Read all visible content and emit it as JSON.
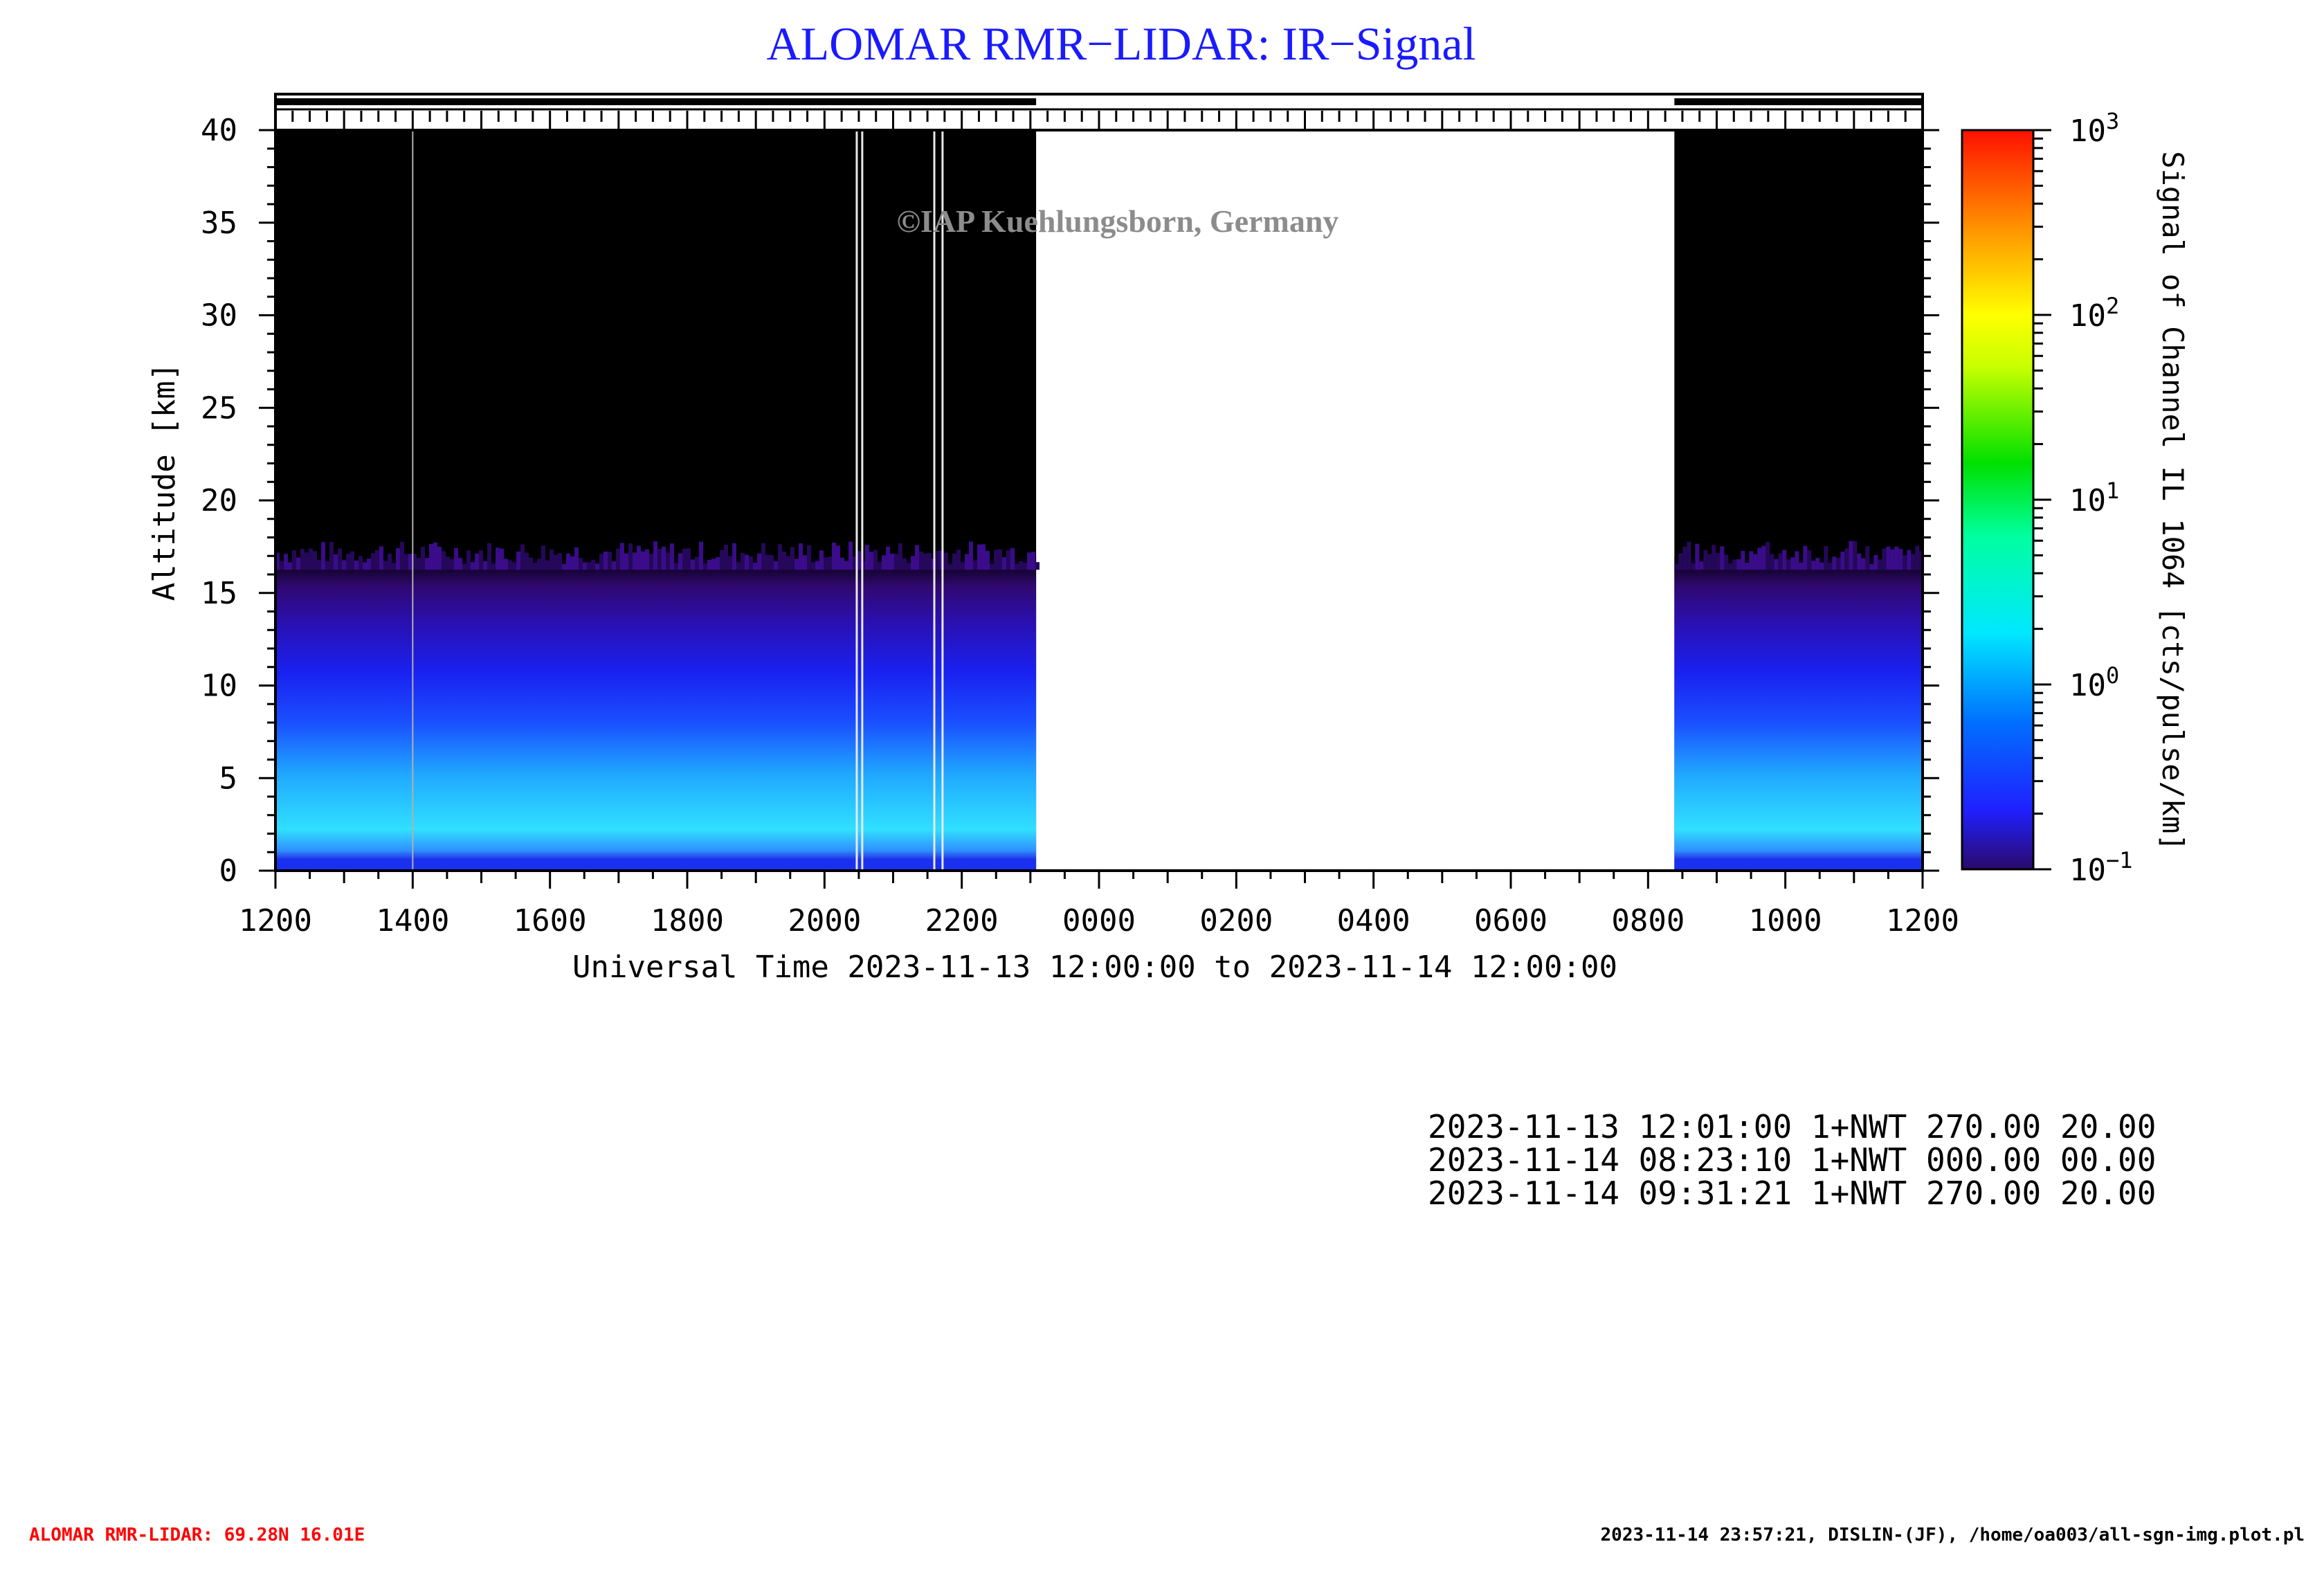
{
  "chart_data": {
    "type": "heatmap",
    "title": "ALOMAR RMR−LIDAR: IR−Signal",
    "watermark": "©IAP Kuehlungsborn, Germany",
    "xlabel": "Universal Time 2023-11-13 12:00:00 to 2023-11-14 12:00:00",
    "ylabel": "Altitude [km]",
    "colorbar_label": "Signal of Channel IL 1064 [cts/pulse/km]",
    "x_ticks": [
      "1200",
      "1400",
      "1600",
      "1800",
      "2000",
      "2200",
      "0000",
      "0200",
      "0400",
      "0600",
      "0800",
      "1000",
      "1200"
    ],
    "xlim_hours": [
      0,
      24
    ],
    "y_ticks": [
      "0",
      "5",
      "10",
      "15",
      "20",
      "25",
      "30",
      "35",
      "40"
    ],
    "ylim": [
      0,
      40
    ],
    "colorbar": {
      "scale": "log",
      "range": [
        0.1,
        1000
      ],
      "ticks_base": "10",
      "tick_exponents": [
        "−1",
        "0",
        "1",
        "2",
        "3"
      ]
    },
    "measurement_periods_utc": [
      {
        "start": "2023-11-13 12:00",
        "end": "2023-11-13 23:05"
      },
      {
        "start": "2023-11-14 08:23",
        "end": "2023-11-14 12:00"
      }
    ],
    "signal_top_altitude_km": 17,
    "colors": {
      "title": "#1a1aff",
      "no_signal": "#000000",
      "no_data": "#ffffff",
      "footer_left": "#ff0000",
      "watermark": "#8c8c8c"
    }
  },
  "log_lines": [
    "2023-11-13 12:01:00 1+NWT 270.00 20.00",
    "2023-11-14 08:23:10 1+NWT 000.00 00.00",
    "2023-11-14 09:31:21 1+NWT 270.00 20.00"
  ],
  "footer_left": "ALOMAR RMR-LIDAR: 69.28N 16.01E",
  "footer_right": "2023-11-14 23:57:21, DISLIN-(JF), /home/oa003/all-sgn-img.plot.pl"
}
